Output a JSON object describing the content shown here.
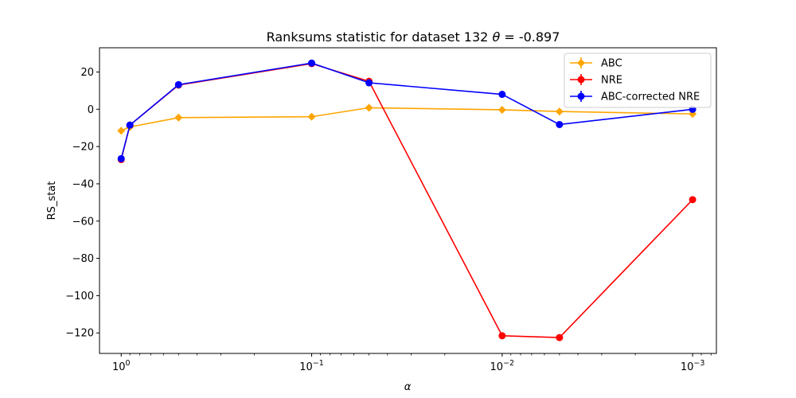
{
  "chart_data": {
    "type": "line",
    "title_prefix": "Ranksums statistic for dataset 132 ",
    "title_theta": "θ",
    "title_suffix": " =  -0.897",
    "xlabel": "α",
    "ylabel": "RS_stat",
    "x_scale": "log (reversed)",
    "x": [
      1.0,
      0.9,
      0.5,
      0.1,
      0.05,
      0.01,
      0.005,
      0.001
    ],
    "xlim": [
      1.3,
      0.00075
    ],
    "ylim": [
      -131,
      33
    ],
    "grid": false,
    "legend_position": "top-right",
    "x_ticks": [
      {
        "value": 1,
        "base": "10",
        "exp": "0"
      },
      {
        "value": 0.1,
        "base": "10",
        "exp": "−1"
      },
      {
        "value": 0.01,
        "base": "10",
        "exp": "−2"
      },
      {
        "value": 0.001,
        "base": "10",
        "exp": "−3"
      }
    ],
    "y_ticks": [
      {
        "value": 20,
        "label": "20"
      },
      {
        "value": 0,
        "label": "0"
      },
      {
        "value": -20,
        "label": "−20"
      },
      {
        "value": -40,
        "label": "−40"
      },
      {
        "value": -60,
        "label": "−60"
      },
      {
        "value": -80,
        "label": "−80"
      },
      {
        "value": -100,
        "label": "−100"
      },
      {
        "value": -120,
        "label": "−120"
      }
    ],
    "series": [
      {
        "name": "ABC",
        "color": "#ffa500",
        "marker": "diamond",
        "values": [
          -11.5,
          -9.5,
          -4.5,
          -4.0,
          0.8,
          -0.3,
          -1.2,
          -2.5
        ]
      },
      {
        "name": "NRE",
        "color": "#ff0000",
        "marker": "circle",
        "values": [
          -27.0,
          -8.5,
          13.0,
          24.5,
          15.0,
          -121.5,
          -122.5,
          -48.5
        ]
      },
      {
        "name": "ABC-corrected NRE",
        "color": "#0000ff",
        "marker": "circle",
        "values": [
          -26.5,
          -8.5,
          13.2,
          24.8,
          14.2,
          8.0,
          -8.2,
          0.0
        ]
      }
    ]
  }
}
